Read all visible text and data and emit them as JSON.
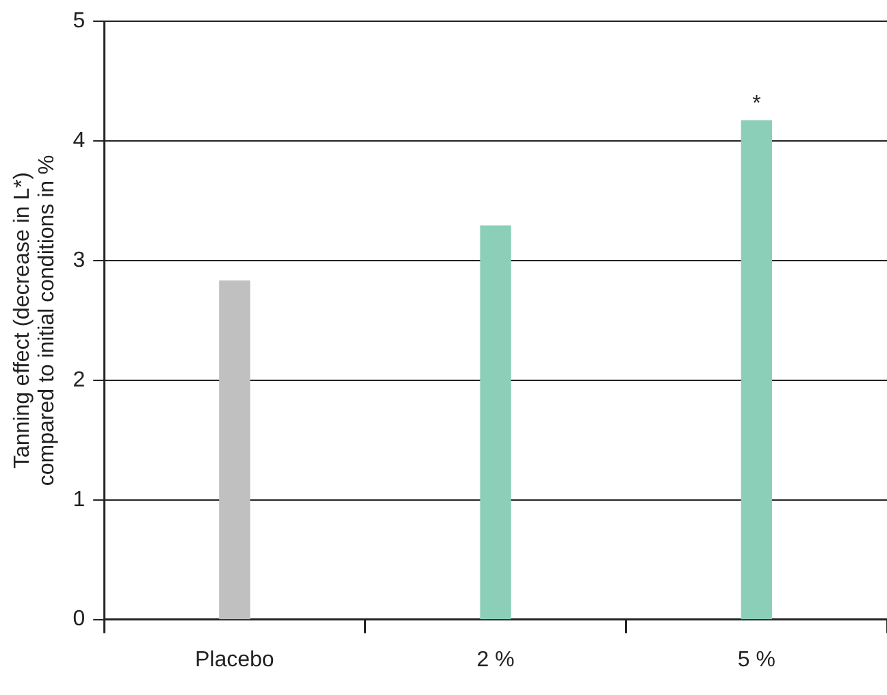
{
  "chart_data": {
    "type": "bar",
    "ylabel": "Tanning effect (decrease in L*)\ncompared to initial conditions in %",
    "categories": [
      "Placebo",
      "2 %",
      "5 %"
    ],
    "values": [
      2.83,
      3.29,
      4.17
    ],
    "colors": [
      "#c0c0c0",
      "#8ccfb9",
      "#8ccfb9"
    ],
    "ylim": [
      0,
      5
    ],
    "yticks": [
      0,
      1,
      2,
      3,
      4,
      5
    ],
    "grid": "y",
    "annotations": [
      {
        "text": "*",
        "x": "5 %",
        "y": 4.17
      }
    ]
  }
}
